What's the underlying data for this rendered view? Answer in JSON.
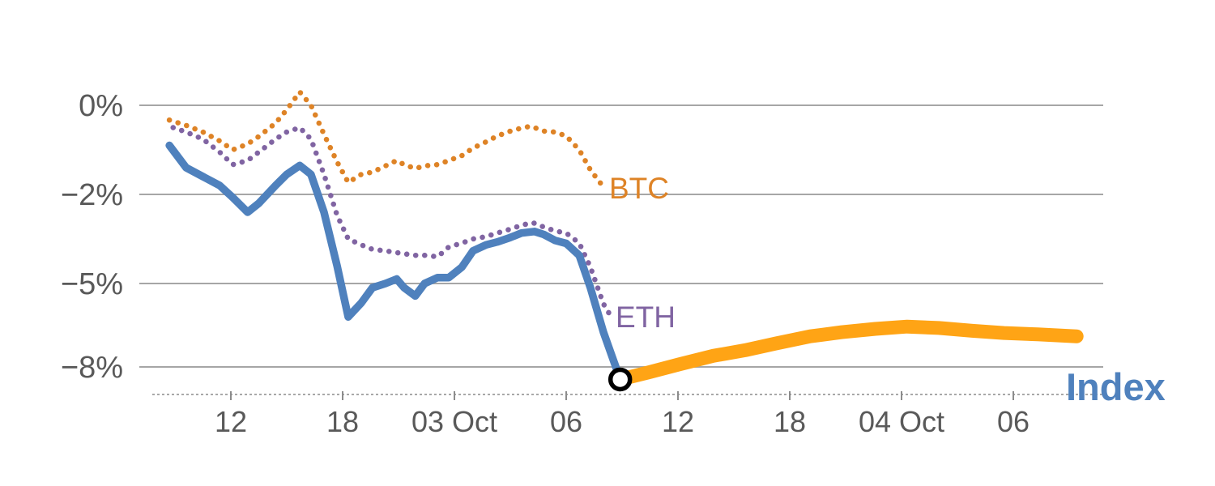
{
  "chart": {
    "title": "",
    "labels": {
      "btc": "BTC",
      "eth": "ETH",
      "index": "Index"
    },
    "colors": {
      "btc": "#DE8326",
      "eth": "#8064A2",
      "index": "#4F81BD",
      "index_projection": "#FFA415",
      "grid": "#A6A6A6",
      "axis_line": "#8C8C8C",
      "axis_text": "#595959",
      "marker_stroke": "#000000",
      "marker_fill": "#FFFFFF"
    }
  },
  "chart_data": {
    "type": "line",
    "title": "",
    "xlabel": "",
    "ylabel": "",
    "x_unit": "hours, ticks every 6h",
    "grid": true,
    "x_ticks": [
      {
        "t": 0,
        "label": "12"
      },
      {
        "t": 6,
        "label": "18"
      },
      {
        "t": 12,
        "label": "03 Oct"
      },
      {
        "t": 18,
        "label": "06"
      },
      {
        "t": 24,
        "label": "12"
      },
      {
        "t": 30,
        "label": "18"
      },
      {
        "t": 36,
        "label": "04 Oct"
      },
      {
        "t": 42,
        "label": "06"
      }
    ],
    "y_ticks": [
      {
        "v": 0,
        "label": "0%"
      },
      {
        "v": -2,
        "label": "−2%"
      },
      {
        "v": -5,
        "label": "−5%"
      },
      {
        "v": -8,
        "label": "−8%"
      }
    ],
    "series": [
      {
        "name": "BTC",
        "style": "dotted",
        "color": "#DE8326",
        "points": [
          [
            -3.3,
            -0.33
          ],
          [
            -2.4,
            -0.45
          ],
          [
            -1.5,
            -0.6
          ],
          [
            -0.6,
            -0.8
          ],
          [
            0.1,
            -1.0
          ],
          [
            0.9,
            -0.87
          ],
          [
            1.5,
            -0.7
          ],
          [
            2.4,
            -0.4
          ],
          [
            3,
            -0.1
          ],
          [
            3.7,
            0.3
          ],
          [
            4.3,
            0
          ],
          [
            5,
            -0.65
          ],
          [
            5.7,
            -1.27
          ],
          [
            6.3,
            -1.73
          ],
          [
            7,
            -1.55
          ],
          [
            7.6,
            -1.5
          ],
          [
            8.3,
            -1.36
          ],
          [
            8.9,
            -1.24
          ],
          [
            9.3,
            -1.33
          ],
          [
            9.9,
            -1.42
          ],
          [
            10.4,
            -1.36
          ],
          [
            11.1,
            -1.33
          ],
          [
            11.7,
            -1.24
          ],
          [
            12.4,
            -1.13
          ],
          [
            13,
            -0.96
          ],
          [
            13.7,
            -0.82
          ],
          [
            14.3,
            -0.69
          ],
          [
            15,
            -0.58
          ],
          [
            15.6,
            -0.51
          ],
          [
            16.1,
            -0.47
          ],
          [
            16.8,
            -0.58
          ],
          [
            17.4,
            -0.6
          ],
          [
            18,
            -0.69
          ],
          [
            18.7,
            -1.0
          ],
          [
            19.3,
            -1.45
          ],
          [
            19.9,
            -1.78
          ]
        ]
      },
      {
        "name": "ETH",
        "style": "dotted",
        "color": "#8064A2",
        "points": [
          [
            -3.1,
            -0.5
          ],
          [
            -2.4,
            -0.6
          ],
          [
            -1.5,
            -0.76
          ],
          [
            -0.6,
            -1.05
          ],
          [
            0.1,
            -1.33
          ],
          [
            0.9,
            -1.24
          ],
          [
            1.5,
            -1.05
          ],
          [
            2.4,
            -0.76
          ],
          [
            3,
            -0.6
          ],
          [
            3.7,
            -0.5
          ],
          [
            4.3,
            -0.76
          ],
          [
            5,
            -1.55
          ],
          [
            5.7,
            -2.7
          ],
          [
            6.3,
            -3.5
          ],
          [
            7,
            -3.7
          ],
          [
            7.6,
            -3.85
          ],
          [
            8.3,
            -3.9
          ],
          [
            8.9,
            -3.96
          ],
          [
            9.3,
            -4.0
          ],
          [
            9.9,
            -4.05
          ],
          [
            10.4,
            -4.05
          ],
          [
            11.1,
            -4.1
          ],
          [
            11.7,
            -3.77
          ],
          [
            12.4,
            -3.64
          ],
          [
            13,
            -3.5
          ],
          [
            13.7,
            -3.42
          ],
          [
            14.3,
            -3.3
          ],
          [
            15,
            -3.17
          ],
          [
            15.6,
            -3.04
          ],
          [
            16.2,
            -2.95
          ],
          [
            16.8,
            -3.1
          ],
          [
            17.4,
            -3.23
          ],
          [
            18,
            -3.3
          ],
          [
            18.7,
            -3.64
          ],
          [
            19.3,
            -4.45
          ],
          [
            20,
            -5.73
          ],
          [
            20.5,
            -6.3
          ]
        ]
      },
      {
        "name": "Index",
        "style": "solid",
        "color": "#4F81BD",
        "points": [
          [
            -3.3,
            -0.9
          ],
          [
            -2.4,
            -1.4
          ],
          [
            -1.5,
            -1.6
          ],
          [
            -0.6,
            -1.8
          ],
          [
            0.1,
            -2.1
          ],
          [
            0.9,
            -2.6
          ],
          [
            1.5,
            -2.3
          ],
          [
            2.4,
            -1.8
          ],
          [
            3,
            -1.55
          ],
          [
            3.7,
            -1.35
          ],
          [
            4.3,
            -1.55
          ],
          [
            5,
            -2.6
          ],
          [
            5.7,
            -4.4
          ],
          [
            6.3,
            -6.2
          ],
          [
            7,
            -5.7
          ],
          [
            7.6,
            -5.15
          ],
          [
            8.3,
            -5.0
          ],
          [
            8.9,
            -4.85
          ],
          [
            9.3,
            -5.15
          ],
          [
            9.9,
            -5.45
          ],
          [
            10.4,
            -5.0
          ],
          [
            11.1,
            -4.8
          ],
          [
            11.7,
            -4.8
          ],
          [
            12.4,
            -4.45
          ],
          [
            13,
            -3.9
          ],
          [
            13.7,
            -3.7
          ],
          [
            14.3,
            -3.6
          ],
          [
            15,
            -3.45
          ],
          [
            15.6,
            -3.3
          ],
          [
            16.3,
            -3.25
          ],
          [
            16.8,
            -3.35
          ],
          [
            17.4,
            -3.55
          ],
          [
            18,
            -3.65
          ],
          [
            18.7,
            -4.05
          ],
          [
            19.3,
            -5.15
          ],
          [
            20,
            -6.75
          ],
          [
            20.9,
            -8.45
          ]
        ]
      },
      {
        "name": "Index (continuation)",
        "style": "solid-thick",
        "color": "#FFA415",
        "points": [
          [
            20.9,
            -8.45
          ],
          [
            22.4,
            -8.2
          ],
          [
            24.1,
            -7.9
          ],
          [
            25.9,
            -7.6
          ],
          [
            27.6,
            -7.4
          ],
          [
            29.3,
            -7.15
          ],
          [
            31.1,
            -6.9
          ],
          [
            32.8,
            -6.75
          ],
          [
            34.6,
            -6.63
          ],
          [
            36.3,
            -6.55
          ],
          [
            38,
            -6.6
          ],
          [
            39.8,
            -6.7
          ],
          [
            41.5,
            -6.78
          ],
          [
            43.3,
            -6.83
          ],
          [
            45.4,
            -6.9
          ]
        ]
      }
    ],
    "marker": {
      "t": 20.9,
      "v": -8.45
    },
    "legend_position": "inline-labels"
  }
}
